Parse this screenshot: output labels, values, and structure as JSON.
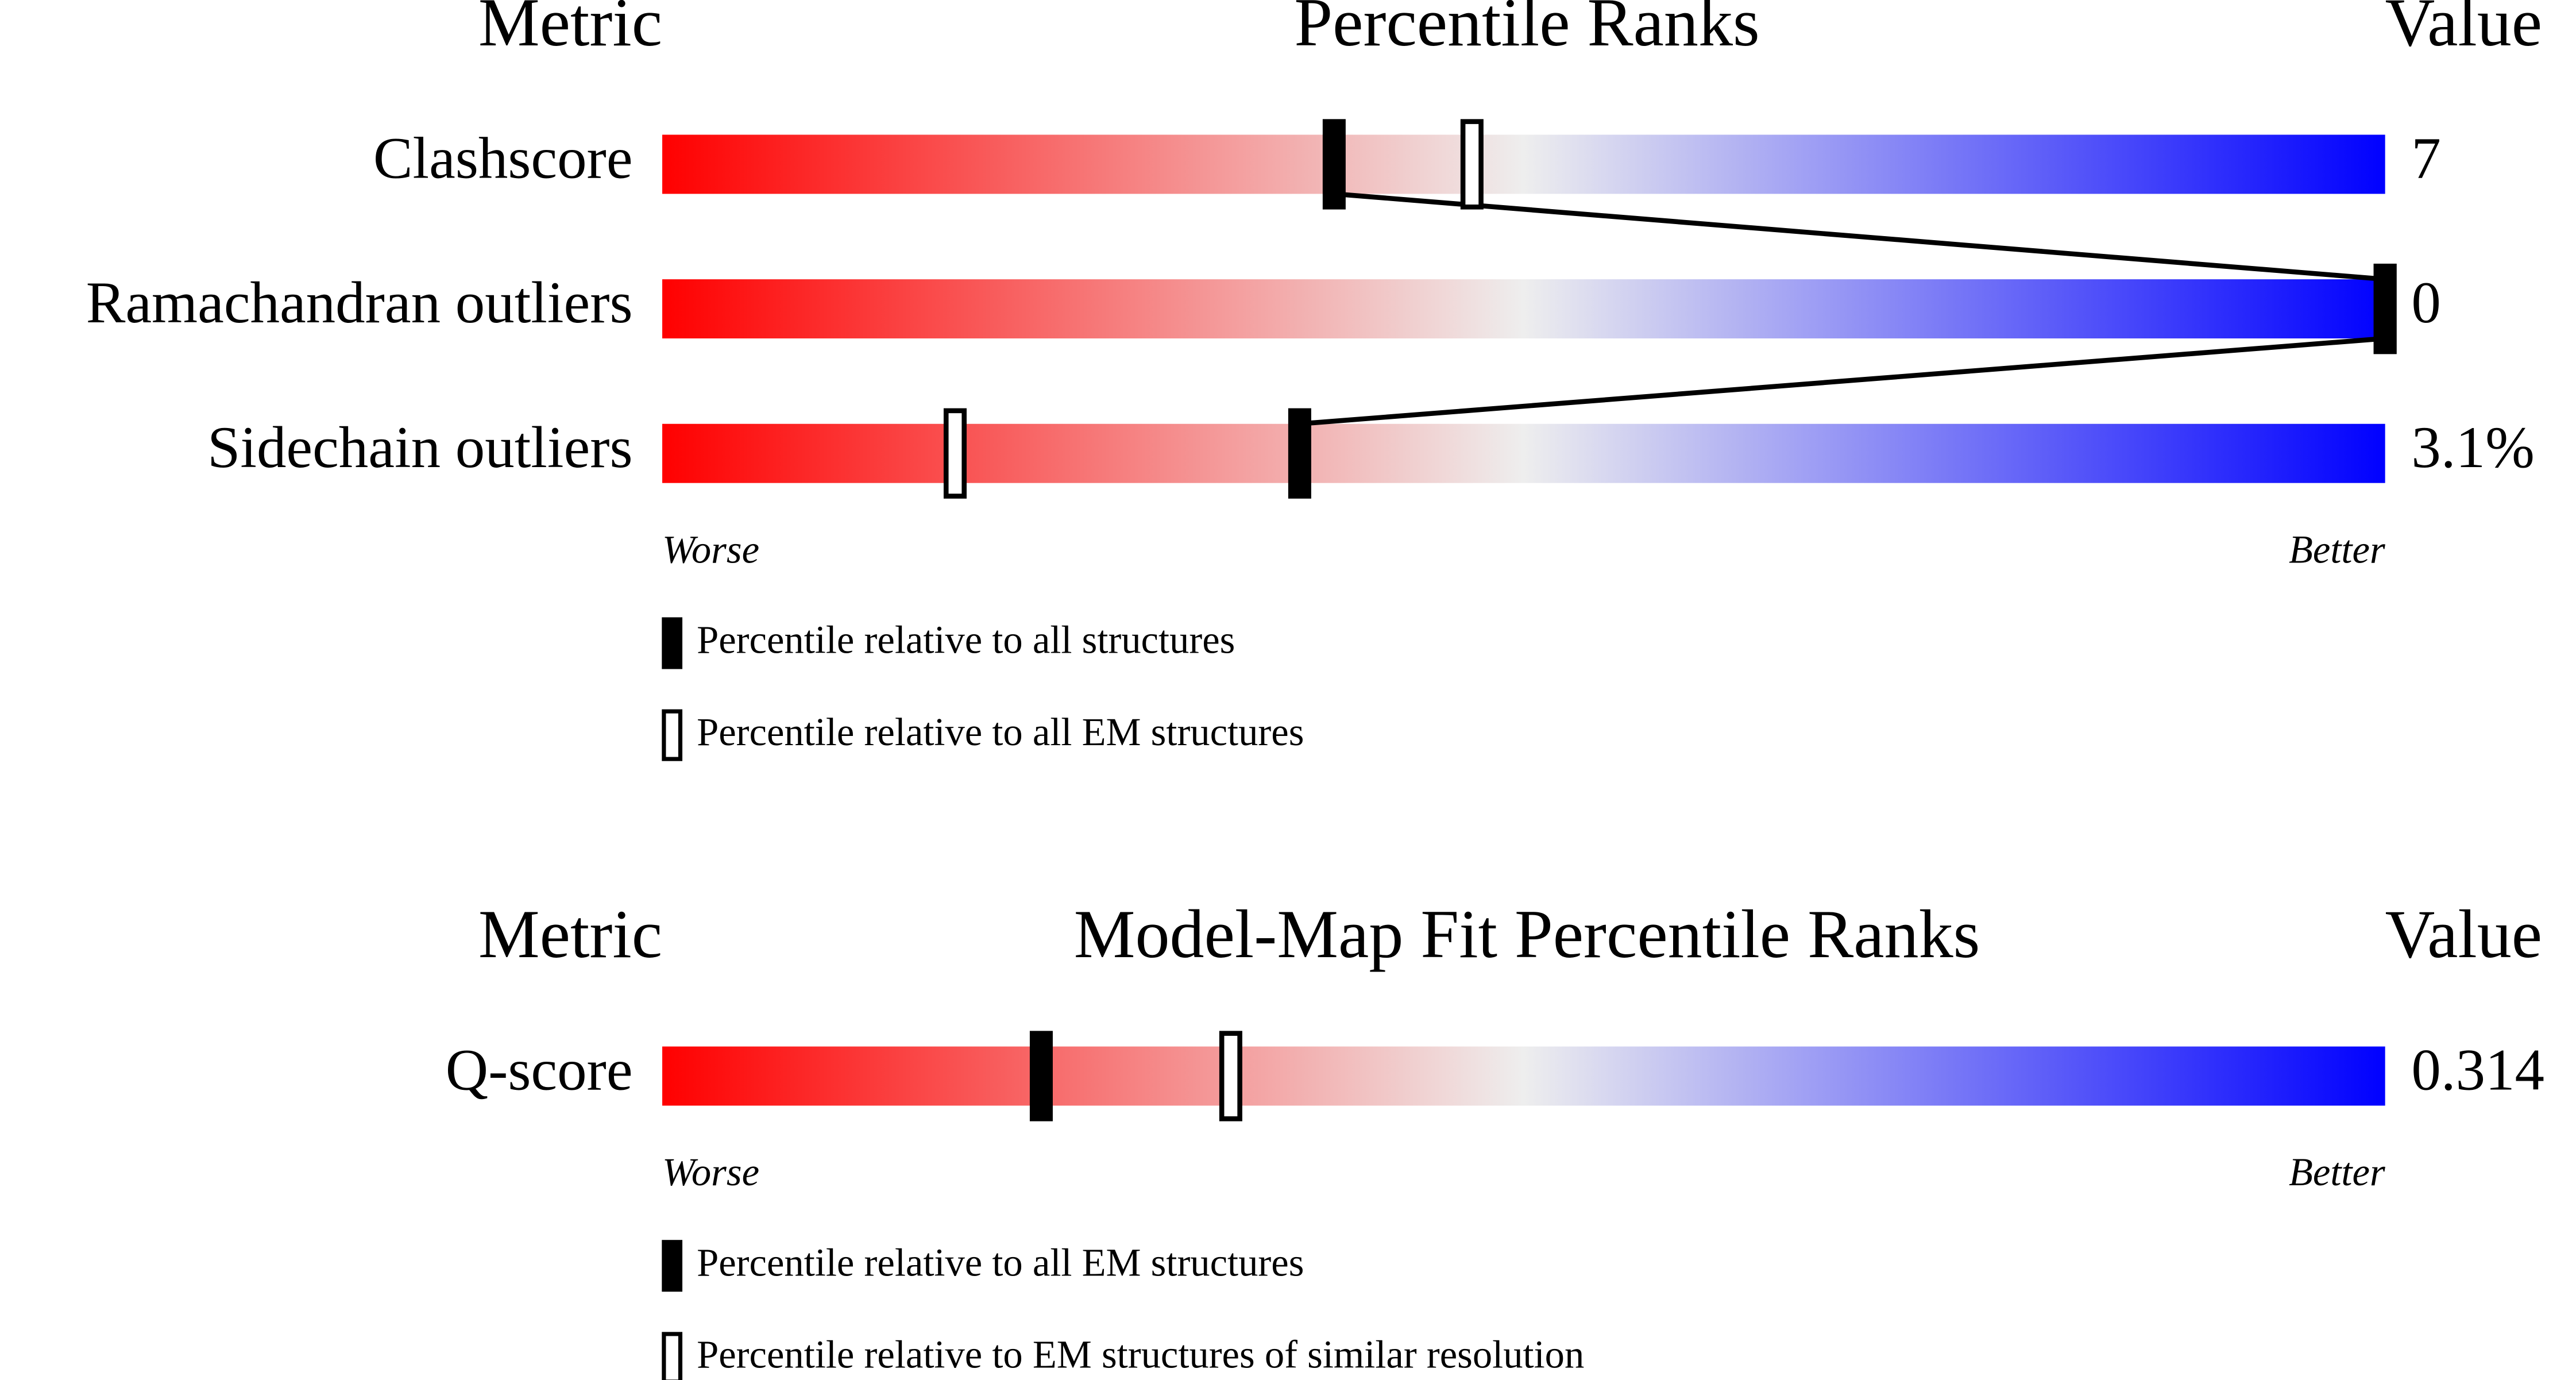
{
  "chart_data": [
    {
      "type": "percentile",
      "metric_header": "Metric",
      "title": "Percentile Ranks",
      "value_header": "Value",
      "categories": [
        "Clashscore",
        "Ramachandran outliers",
        "Sidechain outliers"
      ],
      "metric_values": [
        "7",
        "0",
        "3.1%"
      ],
      "xlim": [
        0,
        100
      ],
      "low_label": "Worse",
      "high_label": "Better",
      "low_color": "#ff0000",
      "mid_color": "#eeeeee",
      "high_color": "#0000ff",
      "series": [
        {
          "name": "Percentile relative to all structures",
          "color": "#000000",
          "values": [
            39,
            100,
            37
          ]
        },
        {
          "name": "Percentile relative to all EM structures",
          "color": "#ffffff",
          "values": [
            47,
            100,
            17
          ]
        }
      ]
    },
    {
      "type": "percentile",
      "metric_header": "Metric",
      "title": "Model-Map Fit Percentile Ranks",
      "value_header": "Value",
      "categories": [
        "Q-score"
      ],
      "metric_values": [
        "0.314"
      ],
      "xlim": [
        0,
        100
      ],
      "low_label": "Worse",
      "high_label": "Better",
      "low_color": "#ff0000",
      "mid_color": "#eeeeee",
      "high_color": "#0000ff",
      "series": [
        {
          "name": "Percentile relative to all EM structures",
          "color": "#000000",
          "values": [
            22
          ]
        },
        {
          "name": "Percentile relative to EM structures of similar resolution",
          "color": "#ffffff",
          "values": [
            33
          ]
        }
      ]
    }
  ]
}
